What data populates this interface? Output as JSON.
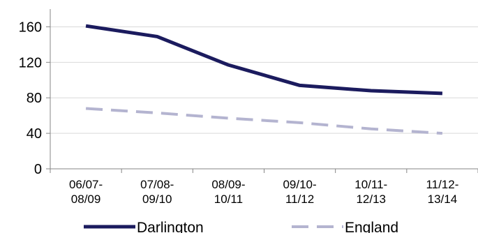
{
  "chart_data": {
    "type": "line",
    "categories": [
      [
        "06/07-",
        "08/09"
      ],
      [
        "07/08-",
        "09/10"
      ],
      [
        "08/09-",
        "10/11"
      ],
      [
        "09/10-",
        "11/12"
      ],
      [
        "10/11-",
        "12/13"
      ],
      [
        "11/12-",
        "13/14"
      ]
    ],
    "series": [
      {
        "name": "Darlington",
        "values": [
          161,
          149,
          117,
          94,
          88,
          85
        ],
        "color": "#1b1b5e",
        "style": "solid"
      },
      {
        "name": "England",
        "values": [
          68,
          63,
          57,
          52,
          45,
          40
        ],
        "color": "#b4b4d0",
        "style": "dashed"
      }
    ],
    "ylim": [
      0,
      180
    ],
    "yticks": [
      0,
      40,
      80,
      120,
      160
    ],
    "grid": true,
    "legend_position": "bottom",
    "title": "",
    "xlabel": "",
    "ylabel": ""
  }
}
